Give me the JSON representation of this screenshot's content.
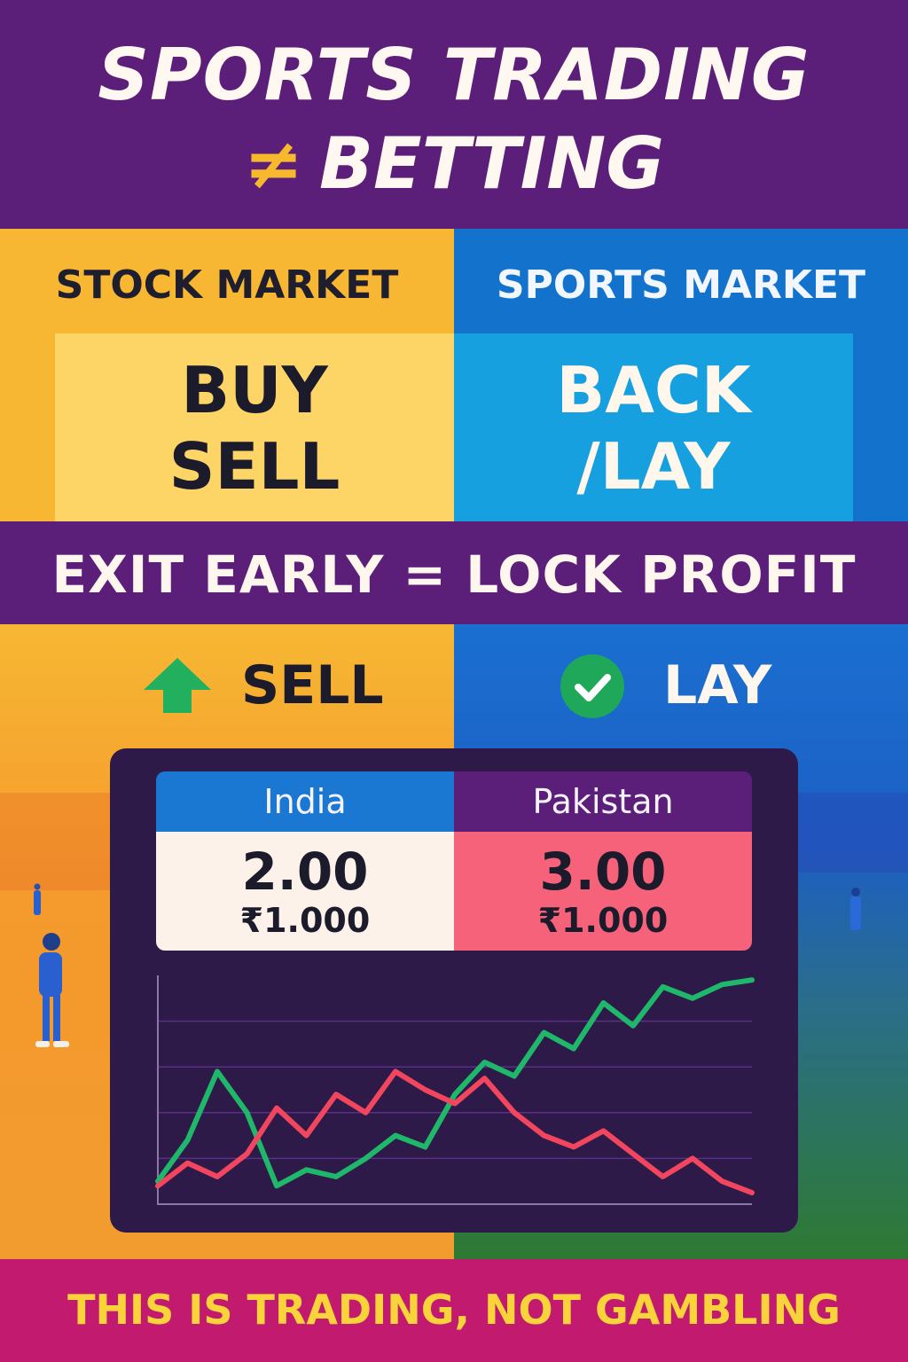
{
  "header": {
    "line1": "SPORTS TRADING",
    "neq_symbol": "≠",
    "line2": "BETTING"
  },
  "left_column": {
    "title": "STOCK MARKET",
    "word1": "BUY",
    "word2": "SELL"
  },
  "right_column": {
    "title": "SPORTS MARKET",
    "word1": "BACK",
    "word2": "/LAY"
  },
  "band": {
    "text": "EXIT EARLY = LOCK PROFIT"
  },
  "actions": {
    "left_label": "SELL",
    "left_icon": "up-arrow-icon",
    "right_label": "LAY",
    "right_icon": "check-circle-icon"
  },
  "odds": {
    "team_a": {
      "name": "India",
      "price": "2.00",
      "stake": "₹1.000"
    },
    "team_b": {
      "name": "Pakistan",
      "price": "3.00",
      "stake": "₹1.000"
    }
  },
  "chart_data": {
    "type": "line",
    "x": [
      0,
      1,
      2,
      3,
      4,
      5,
      6,
      7,
      8,
      9,
      10,
      11,
      12,
      13,
      14,
      15,
      16,
      17,
      18,
      19,
      20
    ],
    "series": [
      {
        "color": "#1fb86a",
        "values": [
          10,
          28,
          58,
          40,
          8,
          15,
          12,
          20,
          30,
          25,
          48,
          62,
          56,
          75,
          68,
          88,
          78,
          95,
          90,
          96,
          98
        ]
      },
      {
        "color": "#f2465e",
        "values": [
          8,
          18,
          12,
          22,
          42,
          30,
          48,
          40,
          58,
          50,
          44,
          55,
          40,
          30,
          25,
          32,
          22,
          12,
          20,
          10,
          5
        ]
      }
    ],
    "grid": true,
    "ylim": [
      0,
      100
    ]
  },
  "footer": {
    "text": "THIS IS TRADING, NOT GAMBLING"
  },
  "colors": {
    "purple": "#5b1f7a",
    "yellow": "#f7b733",
    "blue": "#1272cc",
    "magenta": "#c21a6e",
    "green": "#1fb86a",
    "red": "#f2465e"
  }
}
